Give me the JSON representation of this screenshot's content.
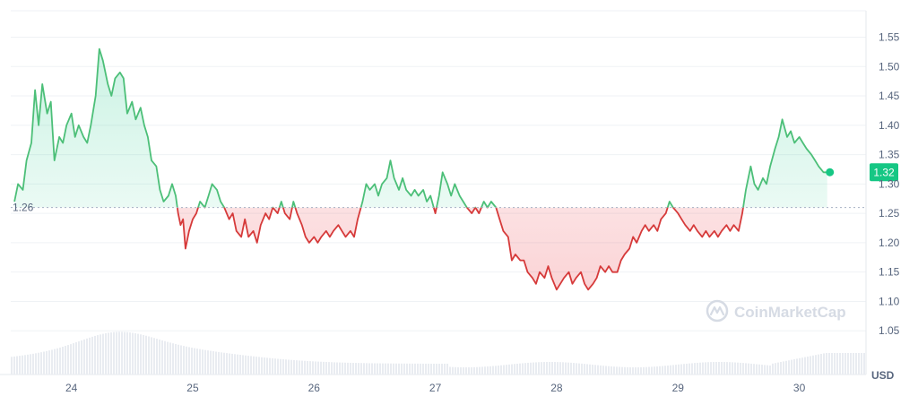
{
  "chart_data": {
    "type": "line",
    "title": "",
    "xlabel": "",
    "ylabel": "",
    "unit": "USD",
    "x_ticks": [
      "24",
      "25",
      "26",
      "27",
      "28",
      "29",
      "30"
    ],
    "y_ticks": [
      "1.05",
      "1.10",
      "1.15",
      "1.20",
      "1.25",
      "1.30",
      "1.35",
      "1.40",
      "1.45",
      "1.50",
      "1.55"
    ],
    "ylim": [
      1.0,
      1.595
    ],
    "xlim": [
      23.5,
      30.55
    ],
    "grid": "horizontal",
    "reference_value": 1.26,
    "reference_label": "1.26",
    "current_value": 1.32,
    "current_label": "1.32",
    "colors": {
      "up": "#16c784",
      "down": "#ea3943",
      "line_up": "#4cbf78",
      "line_down": "#d63a3a"
    },
    "series": [
      {
        "values": [
          [
            23.53,
            1.27
          ],
          [
            23.56,
            1.3
          ],
          [
            23.6,
            1.29
          ],
          [
            23.63,
            1.34
          ],
          [
            23.67,
            1.37
          ],
          [
            23.7,
            1.46
          ],
          [
            23.73,
            1.4
          ],
          [
            23.76,
            1.47
          ],
          [
            23.8,
            1.42
          ],
          [
            23.83,
            1.44
          ],
          [
            23.86,
            1.34
          ],
          [
            23.9,
            1.38
          ],
          [
            23.93,
            1.37
          ],
          [
            23.96,
            1.4
          ],
          [
            24.0,
            1.42
          ],
          [
            24.03,
            1.38
          ],
          [
            24.06,
            1.4
          ],
          [
            24.1,
            1.38
          ],
          [
            24.13,
            1.37
          ],
          [
            24.16,
            1.4
          ],
          [
            24.2,
            1.45
          ],
          [
            24.23,
            1.53
          ],
          [
            24.26,
            1.51
          ],
          [
            24.3,
            1.47
          ],
          [
            24.33,
            1.45
          ],
          [
            24.36,
            1.48
          ],
          [
            24.4,
            1.49
          ],
          [
            24.43,
            1.48
          ],
          [
            24.46,
            1.42
          ],
          [
            24.5,
            1.44
          ],
          [
            24.53,
            1.41
          ],
          [
            24.57,
            1.43
          ],
          [
            24.6,
            1.4
          ],
          [
            24.63,
            1.38
          ],
          [
            24.66,
            1.34
          ],
          [
            24.7,
            1.33
          ],
          [
            24.73,
            1.29
          ],
          [
            24.76,
            1.27
          ],
          [
            24.8,
            1.28
          ],
          [
            24.83,
            1.3
          ],
          [
            24.86,
            1.28
          ],
          [
            24.88,
            1.25
          ],
          [
            24.9,
            1.23
          ],
          [
            24.92,
            1.24
          ],
          [
            24.94,
            1.19
          ],
          [
            24.97,
            1.22
          ],
          [
            25.0,
            1.24
          ],
          [
            25.03,
            1.25
          ],
          [
            25.06,
            1.27
          ],
          [
            25.1,
            1.26
          ],
          [
            25.13,
            1.28
          ],
          [
            25.16,
            1.3
          ],
          [
            25.2,
            1.29
          ],
          [
            25.23,
            1.27
          ],
          [
            25.26,
            1.26
          ],
          [
            25.3,
            1.24
          ],
          [
            25.33,
            1.25
          ],
          [
            25.36,
            1.22
          ],
          [
            25.4,
            1.21
          ],
          [
            25.43,
            1.24
          ],
          [
            25.46,
            1.21
          ],
          [
            25.5,
            1.22
          ],
          [
            25.53,
            1.2
          ],
          [
            25.56,
            1.23
          ],
          [
            25.6,
            1.25
          ],
          [
            25.63,
            1.24
          ],
          [
            25.66,
            1.26
          ],
          [
            25.7,
            1.25
          ],
          [
            25.73,
            1.27
          ],
          [
            25.76,
            1.25
          ],
          [
            25.8,
            1.24
          ],
          [
            25.83,
            1.27
          ],
          [
            25.86,
            1.25
          ],
          [
            25.9,
            1.23
          ],
          [
            25.93,
            1.21
          ],
          [
            25.96,
            1.2
          ],
          [
            26.0,
            1.21
          ],
          [
            26.03,
            1.2
          ],
          [
            26.06,
            1.21
          ],
          [
            26.1,
            1.22
          ],
          [
            26.13,
            1.21
          ],
          [
            26.16,
            1.22
          ],
          [
            26.2,
            1.23
          ],
          [
            26.23,
            1.22
          ],
          [
            26.26,
            1.21
          ],
          [
            26.3,
            1.22
          ],
          [
            26.33,
            1.21
          ],
          [
            26.36,
            1.24
          ],
          [
            26.4,
            1.27
          ],
          [
            26.43,
            1.3
          ],
          [
            26.46,
            1.29
          ],
          [
            26.5,
            1.3
          ],
          [
            26.53,
            1.28
          ],
          [
            26.56,
            1.3
          ],
          [
            26.6,
            1.31
          ],
          [
            26.63,
            1.34
          ],
          [
            26.66,
            1.31
          ],
          [
            26.7,
            1.29
          ],
          [
            26.73,
            1.31
          ],
          [
            26.76,
            1.29
          ],
          [
            26.8,
            1.28
          ],
          [
            26.83,
            1.29
          ],
          [
            26.86,
            1.28
          ],
          [
            26.9,
            1.29
          ],
          [
            26.93,
            1.27
          ],
          [
            26.96,
            1.28
          ],
          [
            27.0,
            1.25
          ],
          [
            27.03,
            1.28
          ],
          [
            27.06,
            1.32
          ],
          [
            27.1,
            1.3
          ],
          [
            27.13,
            1.28
          ],
          [
            27.16,
            1.3
          ],
          [
            27.2,
            1.28
          ],
          [
            27.23,
            1.27
          ],
          [
            27.26,
            1.26
          ],
          [
            27.3,
            1.25
          ],
          [
            27.33,
            1.26
          ],
          [
            27.36,
            1.25
          ],
          [
            27.4,
            1.27
          ],
          [
            27.43,
            1.26
          ],
          [
            27.46,
            1.27
          ],
          [
            27.5,
            1.26
          ],
          [
            27.53,
            1.24
          ],
          [
            27.56,
            1.22
          ],
          [
            27.6,
            1.21
          ],
          [
            27.63,
            1.17
          ],
          [
            27.66,
            1.18
          ],
          [
            27.7,
            1.17
          ],
          [
            27.73,
            1.17
          ],
          [
            27.76,
            1.15
          ],
          [
            27.8,
            1.14
          ],
          [
            27.83,
            1.13
          ],
          [
            27.86,
            1.15
          ],
          [
            27.9,
            1.14
          ],
          [
            27.93,
            1.16
          ],
          [
            27.96,
            1.14
          ],
          [
            28.0,
            1.12
          ],
          [
            28.03,
            1.13
          ],
          [
            28.06,
            1.14
          ],
          [
            28.1,
            1.15
          ],
          [
            28.13,
            1.13
          ],
          [
            28.16,
            1.14
          ],
          [
            28.2,
            1.15
          ],
          [
            28.23,
            1.13
          ],
          [
            28.26,
            1.12
          ],
          [
            28.3,
            1.13
          ],
          [
            28.33,
            1.14
          ],
          [
            28.36,
            1.16
          ],
          [
            28.4,
            1.15
          ],
          [
            28.43,
            1.16
          ],
          [
            28.46,
            1.15
          ],
          [
            28.5,
            1.15
          ],
          [
            28.53,
            1.17
          ],
          [
            28.56,
            1.18
          ],
          [
            28.6,
            1.19
          ],
          [
            28.63,
            1.21
          ],
          [
            28.66,
            1.2
          ],
          [
            28.7,
            1.22
          ],
          [
            28.73,
            1.23
          ],
          [
            28.76,
            1.22
          ],
          [
            28.8,
            1.23
          ],
          [
            28.83,
            1.22
          ],
          [
            28.86,
            1.24
          ],
          [
            28.9,
            1.25
          ],
          [
            28.93,
            1.27
          ],
          [
            28.96,
            1.26
          ],
          [
            29.0,
            1.25
          ],
          [
            29.03,
            1.24
          ],
          [
            29.06,
            1.23
          ],
          [
            29.1,
            1.22
          ],
          [
            29.13,
            1.23
          ],
          [
            29.16,
            1.22
          ],
          [
            29.2,
            1.21
          ],
          [
            29.23,
            1.22
          ],
          [
            29.26,
            1.21
          ],
          [
            29.3,
            1.22
          ],
          [
            29.33,
            1.21
          ],
          [
            29.36,
            1.22
          ],
          [
            29.4,
            1.23
          ],
          [
            29.43,
            1.22
          ],
          [
            29.46,
            1.23
          ],
          [
            29.5,
            1.22
          ],
          [
            29.53,
            1.25
          ],
          [
            29.56,
            1.29
          ],
          [
            29.6,
            1.33
          ],
          [
            29.63,
            1.3
          ],
          [
            29.66,
            1.29
          ],
          [
            29.7,
            1.31
          ],
          [
            29.73,
            1.3
          ],
          [
            29.76,
            1.33
          ],
          [
            29.8,
            1.36
          ],
          [
            29.83,
            1.38
          ],
          [
            29.86,
            1.41
          ],
          [
            29.9,
            1.38
          ],
          [
            29.93,
            1.39
          ],
          [
            29.96,
            1.37
          ],
          [
            30.0,
            1.38
          ],
          [
            30.03,
            1.37
          ],
          [
            30.06,
            1.36
          ],
          [
            30.1,
            1.35
          ],
          [
            30.13,
            1.34
          ],
          [
            30.16,
            1.33
          ],
          [
            30.2,
            1.32
          ],
          [
            30.23,
            1.32
          ]
        ]
      }
    ]
  },
  "watermark": {
    "brand": "CoinMarketCap",
    "icon": "coinmarketcap-logo-icon"
  }
}
